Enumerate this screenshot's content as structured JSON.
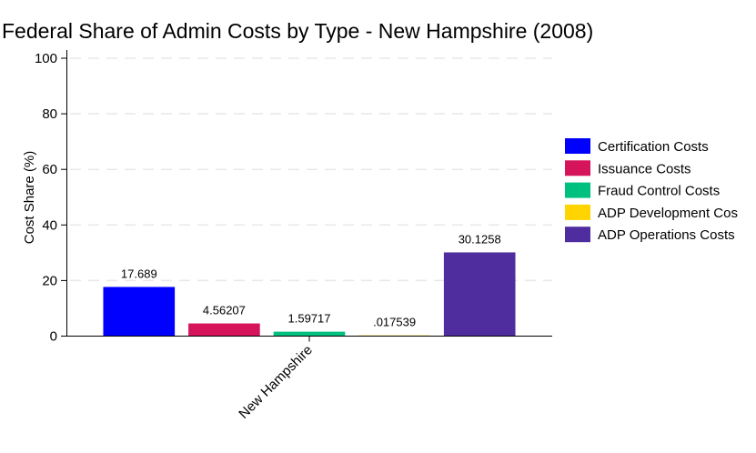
{
  "chart_data": {
    "type": "bar",
    "title": "Federal Share of Admin Costs by Type - New Hampshire (2008)",
    "xlabel": "",
    "ylabel": "Cost Share (%)",
    "ylim": [
      0,
      100
    ],
    "yticks": [
      0,
      20,
      40,
      60,
      80,
      100
    ],
    "grid": true,
    "legend_position": "right",
    "categories": [
      "New Hampshire"
    ],
    "series": [
      {
        "name": "Certification Costs",
        "values": [
          17.689
        ],
        "label": "17.689",
        "color": "#0000ff"
      },
      {
        "name": "Issuance Costs",
        "values": [
          4.56207
        ],
        "label": "4.56207",
        "color": "#d5145c"
      },
      {
        "name": "Fraud Control Costs",
        "values": [
          1.59717
        ],
        "label": "1.59717",
        "color": "#00c07f"
      },
      {
        "name": "ADP Development Cos",
        "values": [
          0.017539
        ],
        "label": ".017539",
        "color": "#ffd400"
      },
      {
        "name": "ADP Operations Costs",
        "values": [
          30.1258
        ],
        "label": "30.1258",
        "color": "#4f2d9f"
      }
    ]
  }
}
